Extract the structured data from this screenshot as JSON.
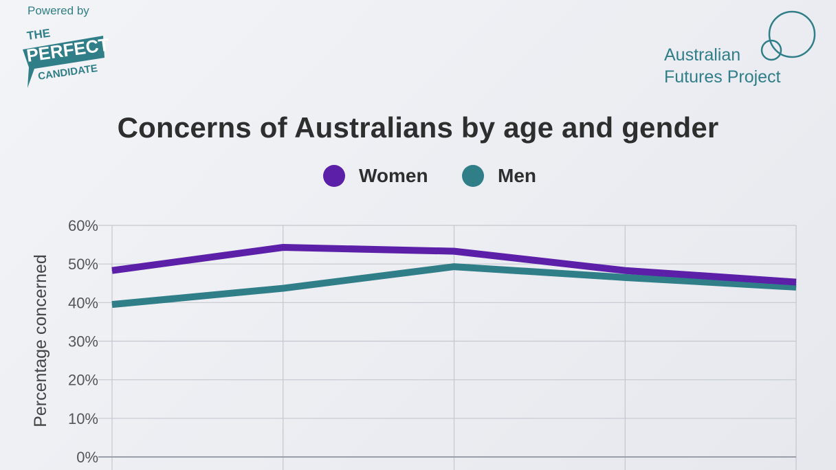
{
  "branding": {
    "powered_by": "Powered by",
    "tpc_logo": {
      "line1": "THE",
      "line2": "PERFECT",
      "line3": "CANDIDATE"
    },
    "afp_logo": {
      "line1": "Australian",
      "line2": "Futures Project"
    }
  },
  "colors": {
    "women": "#5b1fa8",
    "men": "#2f7e88",
    "grid": "#c4c7cf",
    "axis_text": "#555555"
  },
  "chart_data": {
    "type": "line",
    "title": "Concerns of Australians by age and gender",
    "ylabel": "Percentage concerned",
    "xlabel": "",
    "ylim": [
      0,
      60
    ],
    "yticks": [
      "0%",
      "10%",
      "20%",
      "30%",
      "40%",
      "50%",
      "60%"
    ],
    "grid": true,
    "legend_position": "top-center",
    "series": [
      {
        "name": "Women",
        "values": [
          48.3,
          54.3,
          53.3,
          48.3,
          45.3
        ]
      },
      {
        "name": "Men",
        "values": [
          39.5,
          43.7,
          49.3,
          46.5,
          44.0
        ]
      }
    ]
  }
}
